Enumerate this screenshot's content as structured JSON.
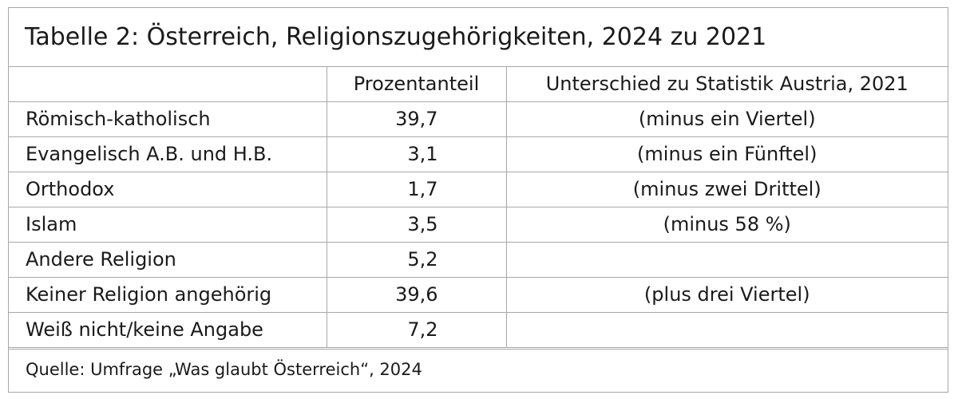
{
  "title": "Tabelle 2: Österreich, Religionszugehörigkeiten, 2024 zu 2021",
  "columns": [
    "",
    "Prozentanteil",
    "Unterschied zu Statistik Austria, 2021"
  ],
  "rows": [
    {
      "label": "Römisch-katholisch",
      "percent": "39,7",
      "difference": "(minus ein Viertel)"
    },
    {
      "label": "Evangelisch A.B. und H.B.",
      "percent": "3,1",
      "difference": "(minus ein Fünftel)"
    },
    {
      "label": "Orthodox",
      "percent": "1,7",
      "difference": "(minus zwei Drittel)"
    },
    {
      "label": "Islam",
      "percent": "3,5",
      "difference": "(minus 58 %)"
    },
    {
      "label": "Andere Religion",
      "percent": "5,2",
      "difference": ""
    },
    {
      "label": "Keiner Religion angehörig",
      "percent": "39,6",
      "difference": "(plus drei Viertel)"
    },
    {
      "label": "Weiß nicht/keine Angabe",
      "percent": "7,2",
      "difference": ""
    }
  ],
  "source": "Quelle: Umfrage „Was glaubt Österreich“, 2024",
  "colors": {
    "border": "#a8a8a8",
    "text": "#1a1a1a",
    "background": "#ffffff"
  }
}
